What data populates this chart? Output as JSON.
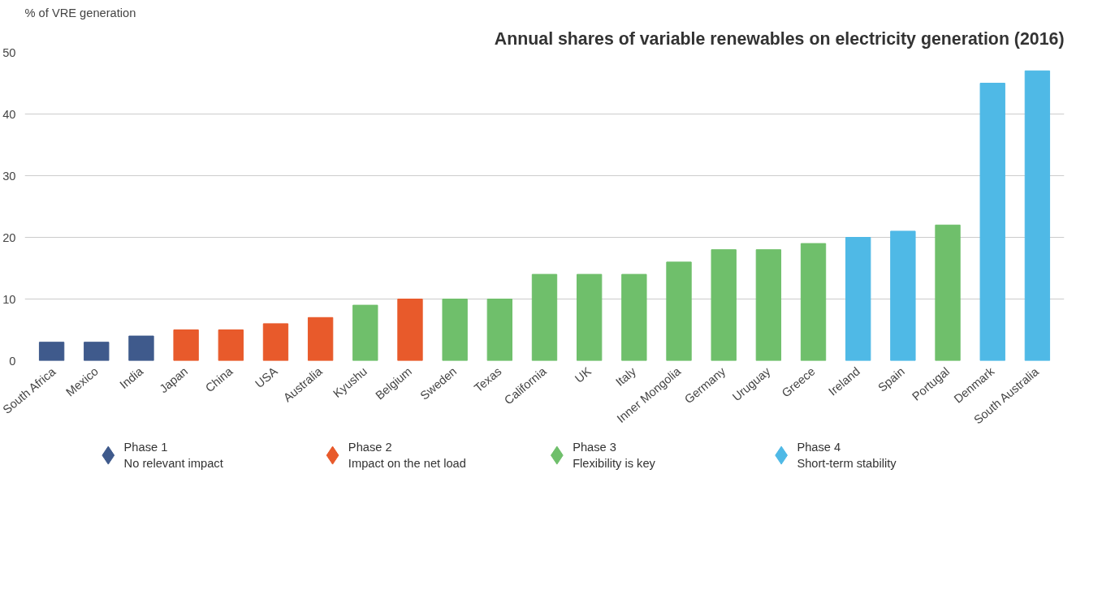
{
  "chart_data": {
    "type": "bar",
    "title": "Annual shares of variable renewables on electricity generation (2016)",
    "ylabel": "% of VRE generation",
    "categories": [
      "South Africa",
      "Mexico",
      "India",
      "Japan",
      "China",
      "USA",
      "Australia",
      "Kyushu",
      "Belgium",
      "Sweden",
      "Texas",
      "California",
      "UK",
      "Italy",
      "Inner Mongolia",
      "Germany",
      "Uruguay",
      "Greece",
      "Ireland",
      "Spain",
      "Portugal",
      "Denmark",
      "South Australia"
    ],
    "series": [
      {
        "name": "Phase 1\nNo relevant impact",
        "color": "#3f5a8c",
        "values": [
          3,
          3,
          4,
          null,
          null,
          null,
          null,
          null,
          null,
          null,
          null,
          null,
          null,
          null,
          null,
          null,
          null,
          null,
          null,
          null,
          null,
          null,
          null
        ]
      },
      {
        "name": "Phase 2\nImpact on the net load",
        "color": "#e85a2b",
        "values": [
          null,
          null,
          null,
          5,
          5,
          6,
          7,
          null,
          10,
          null,
          null,
          null,
          null,
          null,
          null,
          null,
          null,
          null,
          null,
          null,
          null,
          null,
          null
        ]
      },
      {
        "name": "Phase 3\nFlexibility is key",
        "color": "#6fbf6b",
        "values": [
          null,
          null,
          null,
          null,
          null,
          null,
          null,
          9,
          null,
          10,
          10,
          14,
          14,
          14,
          16,
          18,
          18,
          19,
          null,
          null,
          22,
          null,
          null
        ]
      },
      {
        "name": "Phase 4\nShort-term stability",
        "color": "#4fb9e6",
        "values": [
          null,
          null,
          null,
          null,
          null,
          null,
          null,
          null,
          null,
          null,
          null,
          null,
          null,
          null,
          null,
          null,
          null,
          null,
          20,
          21,
          null,
          45,
          47
        ]
      }
    ],
    "ylim": [
      0,
      50
    ],
    "yticks": [
      0,
      10,
      20,
      30,
      40,
      50
    ],
    "grid": "y",
    "legend": "bottom"
  }
}
